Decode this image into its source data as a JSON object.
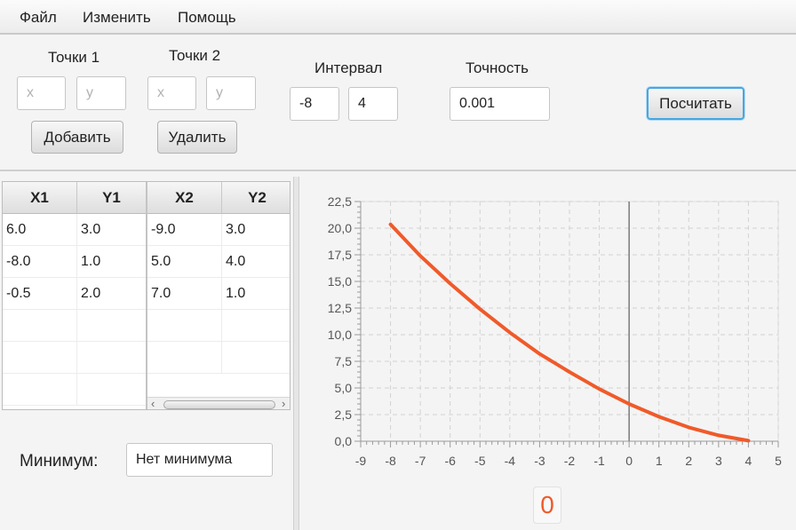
{
  "menu": {
    "items": [
      "Файл",
      "Изменить",
      "Помощь"
    ]
  },
  "points1": {
    "label": "Точки 1",
    "x_placeholder": "x",
    "y_placeholder": "y",
    "add_label": "Добавить"
  },
  "points2": {
    "label": "Точки 2",
    "x_placeholder": "x",
    "y_placeholder": "y",
    "delete_label": "Удалить"
  },
  "interval": {
    "label": "Интервал",
    "start": "-8",
    "end": "4"
  },
  "precision": {
    "label": "Точность",
    "value": "0.001"
  },
  "calculate_label": "Посчитать",
  "table1": {
    "headers": [
      "X1",
      "Y1"
    ],
    "rows": [
      [
        "6.0",
        "3.0"
      ],
      [
        "-8.0",
        "1.0"
      ],
      [
        "-0.5",
        "2.0"
      ]
    ]
  },
  "table2": {
    "headers": [
      "X2",
      "Y2"
    ],
    "rows": [
      [
        "-9.0",
        "3.0"
      ],
      [
        "5.0",
        "4.0"
      ],
      [
        "7.0",
        "1.0"
      ]
    ]
  },
  "minimum": {
    "label": "Минимум:",
    "value": "Нет минимума"
  },
  "result_value": "0",
  "colors": {
    "curve": "#f05a2a",
    "focus": "#47a6e3"
  },
  "chart_data": {
    "type": "line",
    "xlim": [
      -9,
      5
    ],
    "ylim": [
      0,
      22.5
    ],
    "x_ticks": [
      "-9",
      "-8",
      "-7",
      "-6",
      "-5",
      "-4",
      "-3",
      "-2",
      "-1",
      "0",
      "1",
      "2",
      "3",
      "4",
      "5"
    ],
    "y_ticks": [
      "0,0",
      "2,5",
      "5,0",
      "7,5",
      "10,0",
      "12,5",
      "15,0",
      "17,5",
      "20,0",
      "22,5"
    ],
    "grid": true,
    "series": [
      {
        "x": [
          -8,
          -7,
          -6,
          -5,
          -4,
          -3,
          -2,
          -1,
          0,
          1,
          2,
          3,
          4
        ],
        "y": [
          20.35,
          17.4,
          14.8,
          12.4,
          10.2,
          8.2,
          6.5,
          4.9,
          3.5,
          2.3,
          1.3,
          0.55,
          0.05
        ]
      }
    ]
  }
}
